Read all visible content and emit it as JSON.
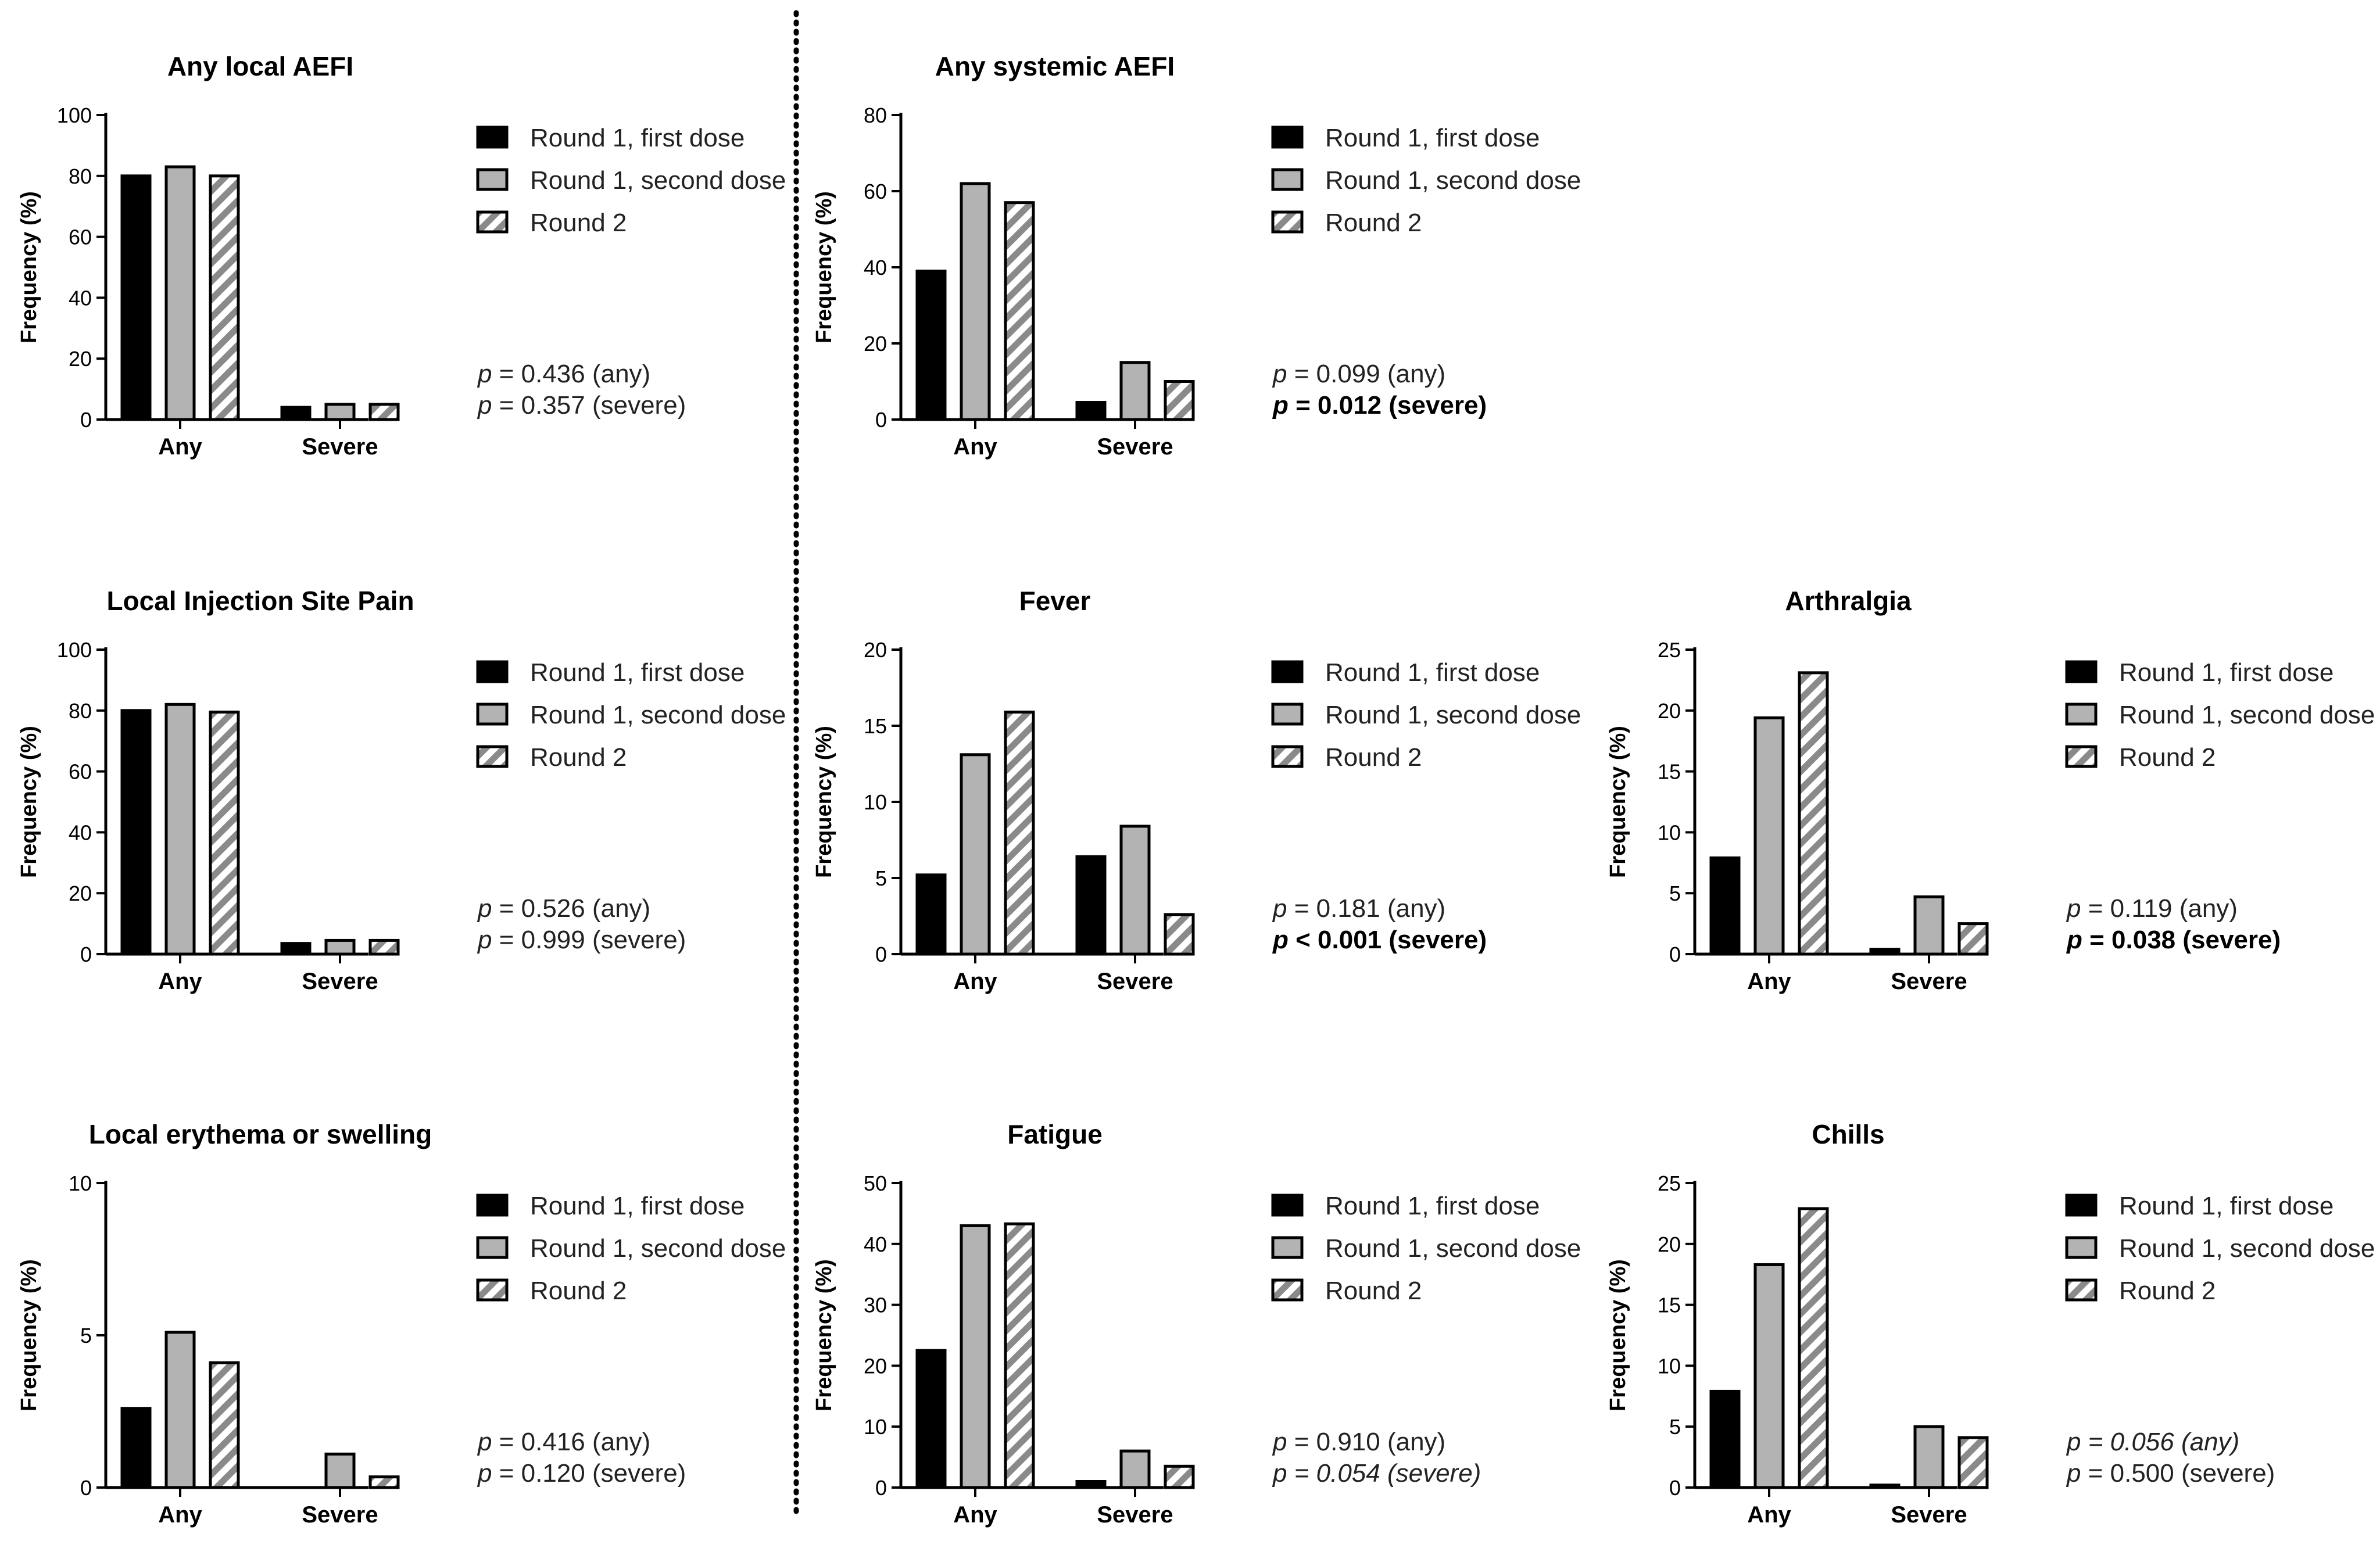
{
  "legend": {
    "series": [
      "Round 1, first dose",
      "Round 1, second dose",
      "Round 2"
    ],
    "fills": [
      "#000000",
      "#b3b3b3",
      "hatch"
    ]
  },
  "chart_data": [
    {
      "type": "bar",
      "title": "Any local AEFI",
      "categories": [
        "Any",
        "Severe"
      ],
      "ylabel": "Frequency (%)",
      "ylim": [
        0,
        100
      ],
      "yticks": [
        0,
        20,
        40,
        60,
        80,
        100
      ],
      "series": [
        {
          "name": "Round 1, first dose",
          "values": [
            80,
            4
          ]
        },
        {
          "name": "Round 1, second dose",
          "values": [
            83,
            5
          ]
        },
        {
          "name": "Round 2",
          "values": [
            80,
            5
          ]
        }
      ],
      "pvalues": [
        {
          "p_label": "p",
          "text": " = 0.436 (any)",
          "style": "normal"
        },
        {
          "p_label": "p",
          "text": " = 0.357 (severe)",
          "style": "normal"
        }
      ]
    },
    {
      "type": "bar",
      "title": "Any systemic AEFI",
      "categories": [
        "Any",
        "Severe"
      ],
      "ylabel": "Frequency (%)",
      "ylim": [
        0,
        80
      ],
      "yticks": [
        0,
        20,
        40,
        60,
        80
      ],
      "series": [
        {
          "name": "Round 1, first dose",
          "values": [
            39,
            4.5
          ]
        },
        {
          "name": "Round 1, second dose",
          "values": [
            62,
            15
          ]
        },
        {
          "name": "Round 2",
          "values": [
            57,
            10
          ]
        }
      ],
      "pvalues": [
        {
          "p_label": "p",
          "text": " = 0.099 (any)",
          "style": "normal"
        },
        {
          "p_label": "p",
          "text": " = 0.012 (severe)",
          "style": "bold"
        }
      ]
    },
    {
      "type": "bar",
      "title": "Local Injection Site Pain",
      "categories": [
        "Any",
        "Severe"
      ],
      "ylabel": "Frequency (%)",
      "ylim": [
        0,
        100
      ],
      "yticks": [
        0,
        20,
        40,
        60,
        80,
        100
      ],
      "series": [
        {
          "name": "Round 1, first dose",
          "values": [
            80,
            3.5
          ]
        },
        {
          "name": "Round 1, second dose",
          "values": [
            82,
            4.5
          ]
        },
        {
          "name": "Round 2",
          "values": [
            79.5,
            4.5
          ]
        }
      ],
      "pvalues": [
        {
          "p_label": "p",
          "text": " = 0.526 (any)",
          "style": "normal"
        },
        {
          "p_label": "p",
          "text": " = 0.999 (severe)",
          "style": "normal"
        }
      ]
    },
    {
      "type": "bar",
      "title": "Fever",
      "categories": [
        "Any",
        "Severe"
      ],
      "ylabel": "Frequency (%)",
      "ylim": [
        0,
        20
      ],
      "yticks": [
        0,
        5,
        10,
        15,
        20
      ],
      "series": [
        {
          "name": "Round 1, first dose",
          "values": [
            5.2,
            6.4
          ]
        },
        {
          "name": "Round 1, second dose",
          "values": [
            13.1,
            8.4
          ]
        },
        {
          "name": "Round 2",
          "values": [
            15.9,
            2.6
          ]
        }
      ],
      "pvalues": [
        {
          "p_label": "p",
          "text": " = 0.181 (any)",
          "style": "normal"
        },
        {
          "p_label": "p",
          "text": " < 0.001 (severe)",
          "style": "bold"
        }
      ]
    },
    {
      "type": "bar",
      "title": "Arthralgia",
      "categories": [
        "Any",
        "Severe"
      ],
      "ylabel": "Frequency (%)",
      "ylim": [
        0,
        25
      ],
      "yticks": [
        0,
        5,
        10,
        15,
        20,
        25
      ],
      "series": [
        {
          "name": "Round 1, first dose",
          "values": [
            7.9,
            0.4
          ]
        },
        {
          "name": "Round 1, second dose",
          "values": [
            19.4,
            4.7
          ]
        },
        {
          "name": "Round 2",
          "values": [
            23.1,
            2.5
          ]
        }
      ],
      "pvalues": [
        {
          "p_label": "p",
          "text": " = 0.119 (any)",
          "style": "normal"
        },
        {
          "p_label": "p",
          "text": " = 0.038 (severe)",
          "style": "bold"
        }
      ]
    },
    {
      "type": "bar",
      "title": "Local erythema or swelling",
      "categories": [
        "Any",
        "Severe"
      ],
      "ylabel": "Frequency (%)",
      "ylim": [
        0,
        10
      ],
      "yticks": [
        0,
        5,
        10
      ],
      "series": [
        {
          "name": "Round 1, first dose",
          "values": [
            2.6,
            0
          ]
        },
        {
          "name": "Round 1, second dose",
          "values": [
            5.1,
            1.1
          ]
        },
        {
          "name": "Round 2",
          "values": [
            4.1,
            0.35
          ]
        }
      ],
      "pvalues": [
        {
          "p_label": "p",
          "text": " = 0.416 (any)",
          "style": "normal"
        },
        {
          "p_label": "p",
          "text": " = 0.120 (severe)",
          "style": "normal"
        }
      ]
    },
    {
      "type": "bar",
      "title": "Fatigue",
      "categories": [
        "Any",
        "Severe"
      ],
      "ylabel": "Frequency (%)",
      "ylim": [
        0,
        50
      ],
      "yticks": [
        0,
        10,
        20,
        30,
        40,
        50
      ],
      "series": [
        {
          "name": "Round 1, first dose",
          "values": [
            22.5,
            1
          ]
        },
        {
          "name": "Round 1, second dose",
          "values": [
            43,
            6
          ]
        },
        {
          "name": "Round 2",
          "values": [
            43.3,
            3.5
          ]
        }
      ],
      "pvalues": [
        {
          "p_label": "p",
          "text": " = 0.910 (any)",
          "style": "normal"
        },
        {
          "p_label": "p",
          "text": " = 0.054 (severe)",
          "style": "italic"
        }
      ]
    },
    {
      "type": "bar",
      "title": "Chills",
      "categories": [
        "Any",
        "Severe"
      ],
      "ylabel": "Frequency (%)",
      "ylim": [
        0,
        25
      ],
      "yticks": [
        0,
        5,
        10,
        15,
        20,
        25
      ],
      "series": [
        {
          "name": "Round 1, first dose",
          "values": [
            7.9,
            0.2
          ]
        },
        {
          "name": "Round 1, second dose",
          "values": [
            18.3,
            5.0
          ]
        },
        {
          "name": "Round 2",
          "values": [
            22.9,
            4.1
          ]
        }
      ],
      "pvalues": [
        {
          "p_label": "p",
          "text": " = 0.056 (any)",
          "style": "italic"
        },
        {
          "p_label": "p",
          "text": " = 0.500 (severe)",
          "style": "normal"
        }
      ]
    }
  ]
}
